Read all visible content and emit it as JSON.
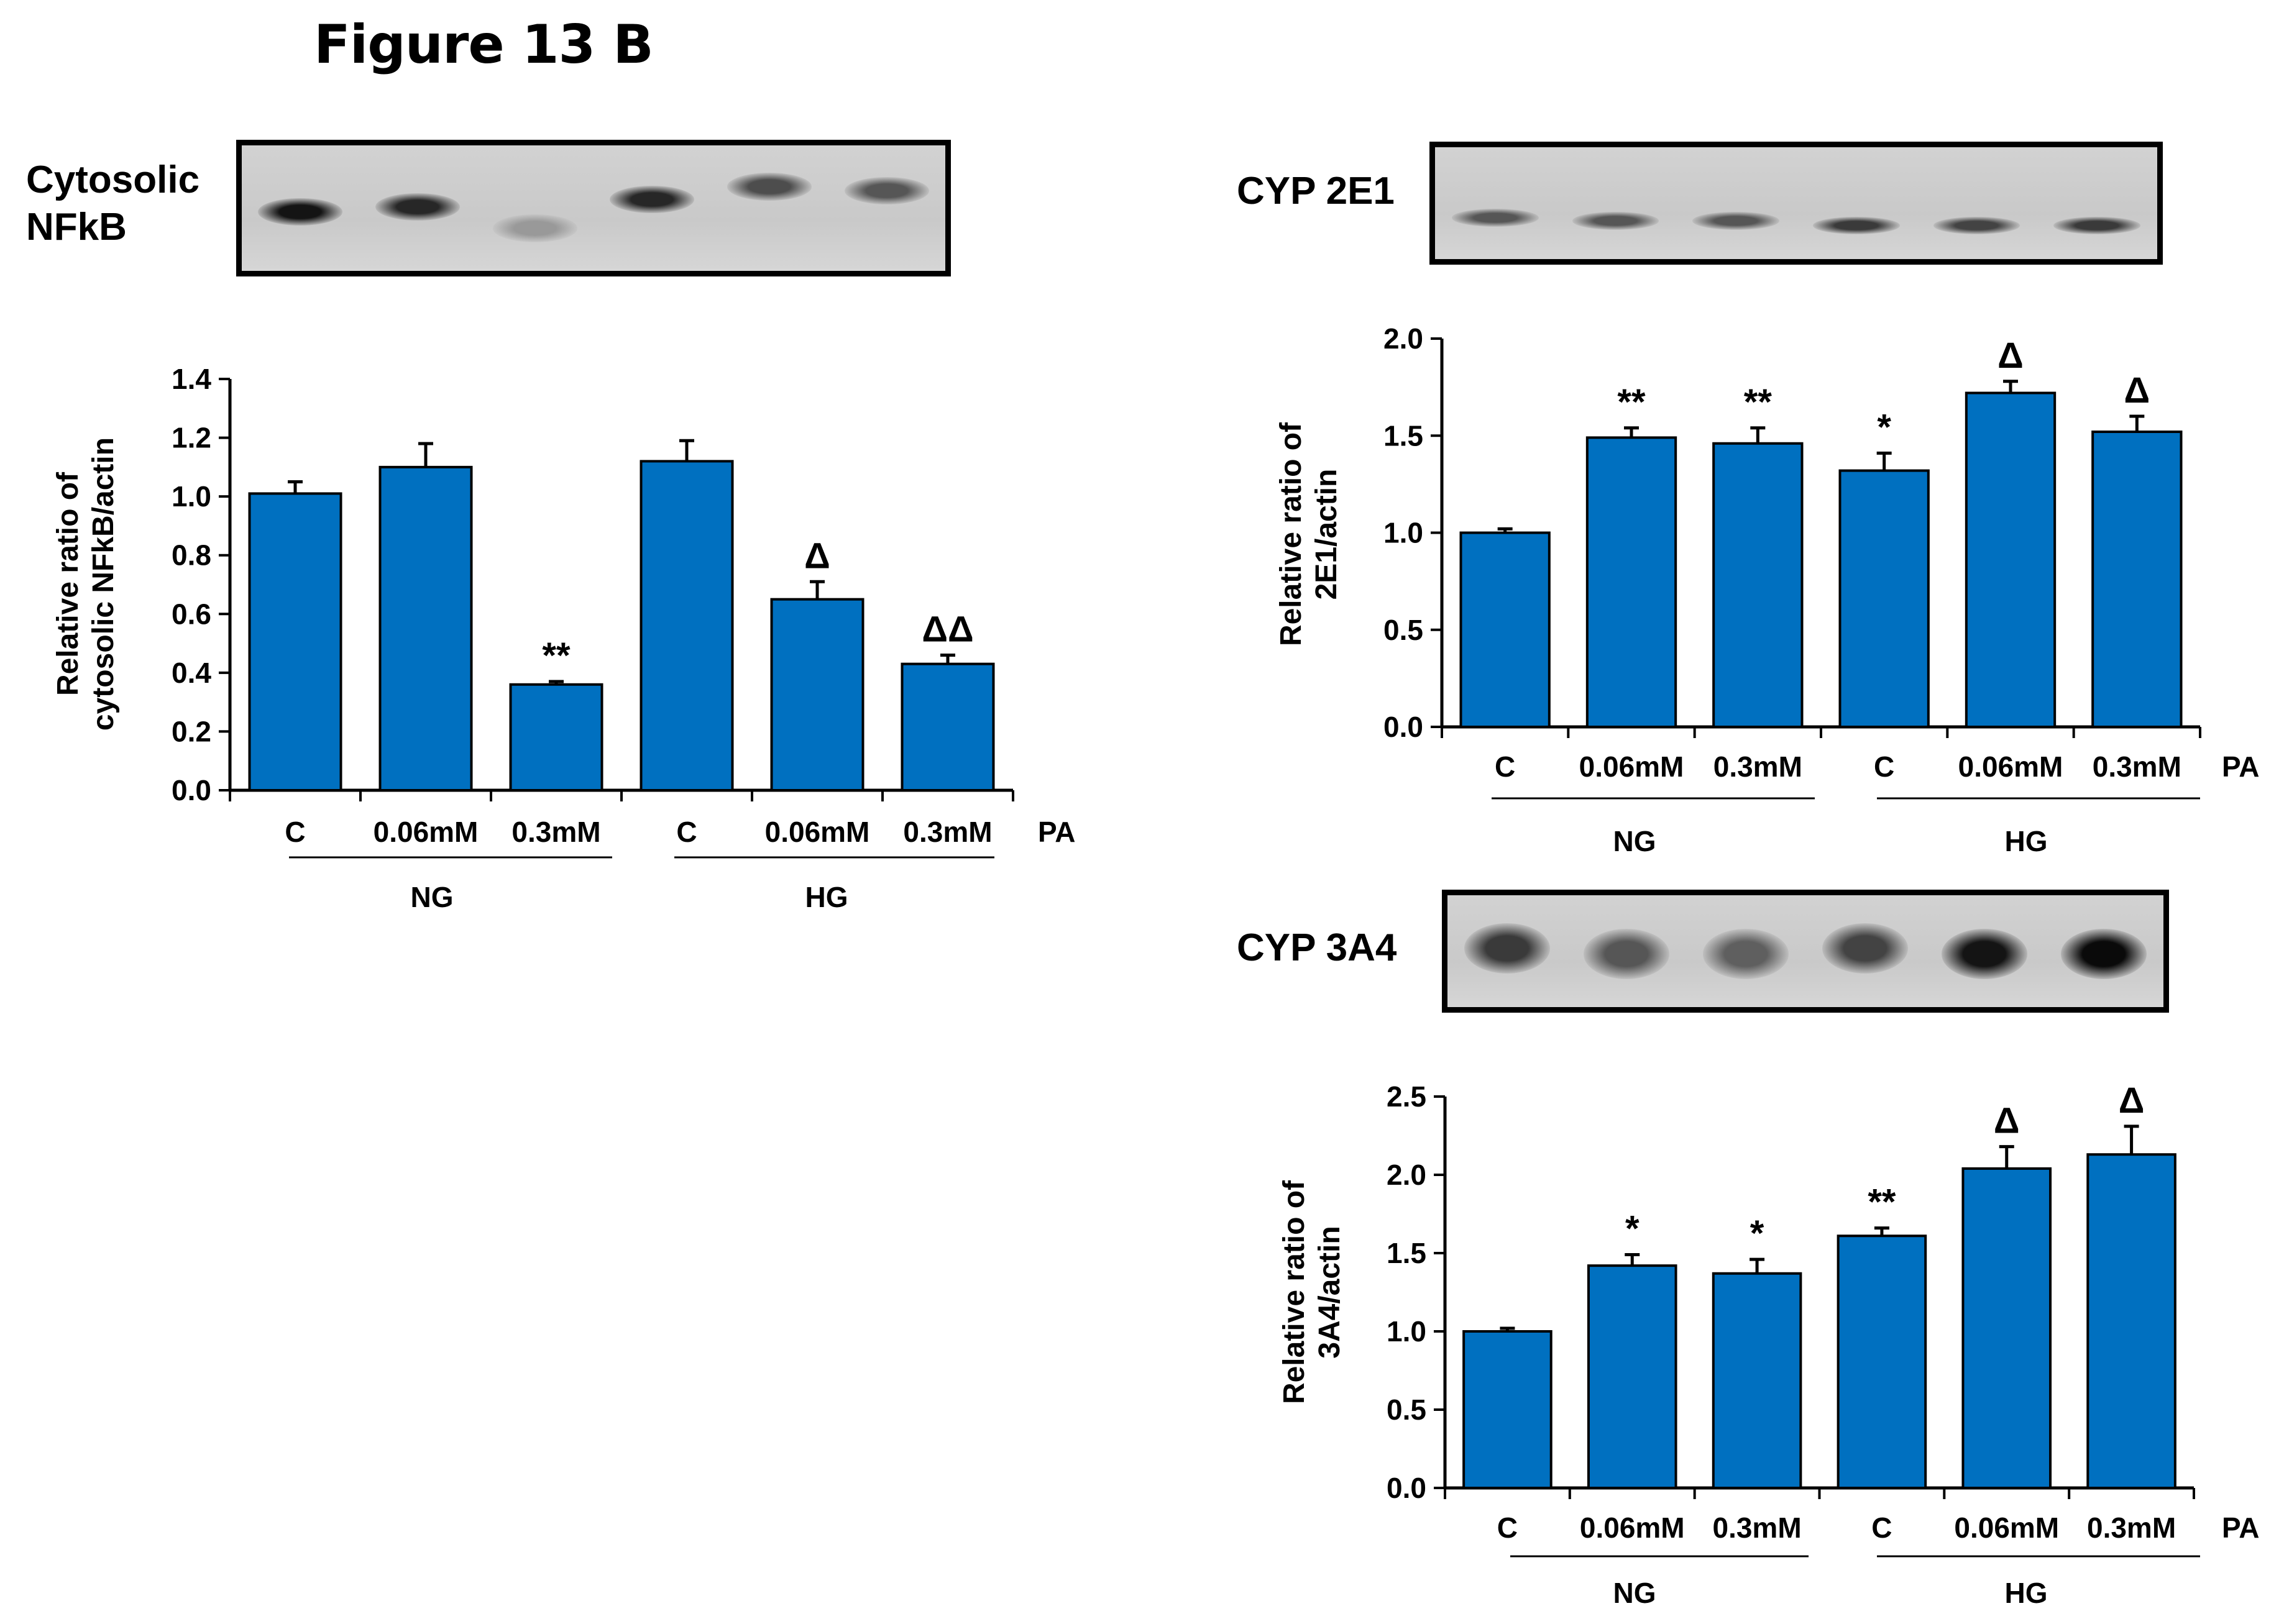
{
  "figure_title": "Figure 13 B",
  "blots": [
    {
      "label_lines": [
        "Cytosolic",
        "NFkB"
      ],
      "lanes": 6
    },
    {
      "label_lines": [
        "CYP 2E1"
      ],
      "lanes": 6
    },
    {
      "label_lines": [
        "CYP 3A4"
      ],
      "lanes": 6
    }
  ],
  "colors": {
    "bar": "#0070c0",
    "bar_edge": "#000000",
    "blot_bg": "#c9c9c9"
  },
  "chart_data": [
    {
      "type": "bar",
      "title": "",
      "ylabel": "Relative ratio of cytosolic NFkB/actin",
      "ylabel_lines": [
        "Relative ratio of",
        "cytosolic NFkB/actin"
      ],
      "ylim": [
        0,
        1.4
      ],
      "yticks": [
        "0.0",
        "0.2",
        "0.4",
        "0.6",
        "0.8",
        "1.0",
        "1.2",
        "1.4"
      ],
      "categories": [
        "C",
        "0.06mM",
        "0.3mM",
        "C",
        "0.06mM",
        "0.3mM"
      ],
      "values": [
        1.01,
        1.1,
        0.36,
        1.12,
        0.65,
        0.43
      ],
      "errors": [
        0.04,
        0.08,
        0.01,
        0.07,
        0.06,
        0.03
      ],
      "significance": [
        "",
        "",
        "**",
        "",
        "Δ",
        "ΔΔ"
      ],
      "groups": [
        "NG",
        "HG"
      ],
      "xlabel": "PA"
    },
    {
      "type": "bar",
      "title": "",
      "ylabel": "Relative ratio of 2E1/actin",
      "ylabel_lines": [
        "Relative ratio of",
        "2E1/actin"
      ],
      "ylim": [
        0,
        2.0
      ],
      "yticks": [
        "0.0",
        "0.5",
        "1.0",
        "1.5",
        "2.0"
      ],
      "categories": [
        "C",
        "0.06mM",
        "0.3mM",
        "C",
        "0.06mM",
        "0.3mM"
      ],
      "values": [
        1.0,
        1.49,
        1.46,
        1.32,
        1.72,
        1.52
      ],
      "errors": [
        0.02,
        0.05,
        0.08,
        0.09,
        0.06,
        0.08
      ],
      "significance": [
        "",
        "**",
        "**",
        "*",
        "Δ",
        "Δ"
      ],
      "groups": [
        "NG",
        "HG"
      ],
      "xlabel": "PA"
    },
    {
      "type": "bar",
      "title": "",
      "ylabel": "Relative ratio of 3A4/actin",
      "ylabel_lines": [
        "Relative ratio of",
        "3A4/actin"
      ],
      "ylim": [
        0,
        2.5
      ],
      "yticks": [
        "0.0",
        "0.5",
        "1.0",
        "1.5",
        "2.0",
        "2.5"
      ],
      "categories": [
        "C",
        "0.06mM",
        "0.3mM",
        "C",
        "0.06mM",
        "0.3mM"
      ],
      "values": [
        1.0,
        1.42,
        1.37,
        1.61,
        2.04,
        2.13
      ],
      "errors": [
        0.02,
        0.07,
        0.09,
        0.05,
        0.14,
        0.18
      ],
      "significance": [
        "",
        "*",
        "*",
        "**",
        "Δ",
        "Δ"
      ],
      "groups": [
        "NG",
        "HG"
      ],
      "xlabel": "PA"
    }
  ]
}
